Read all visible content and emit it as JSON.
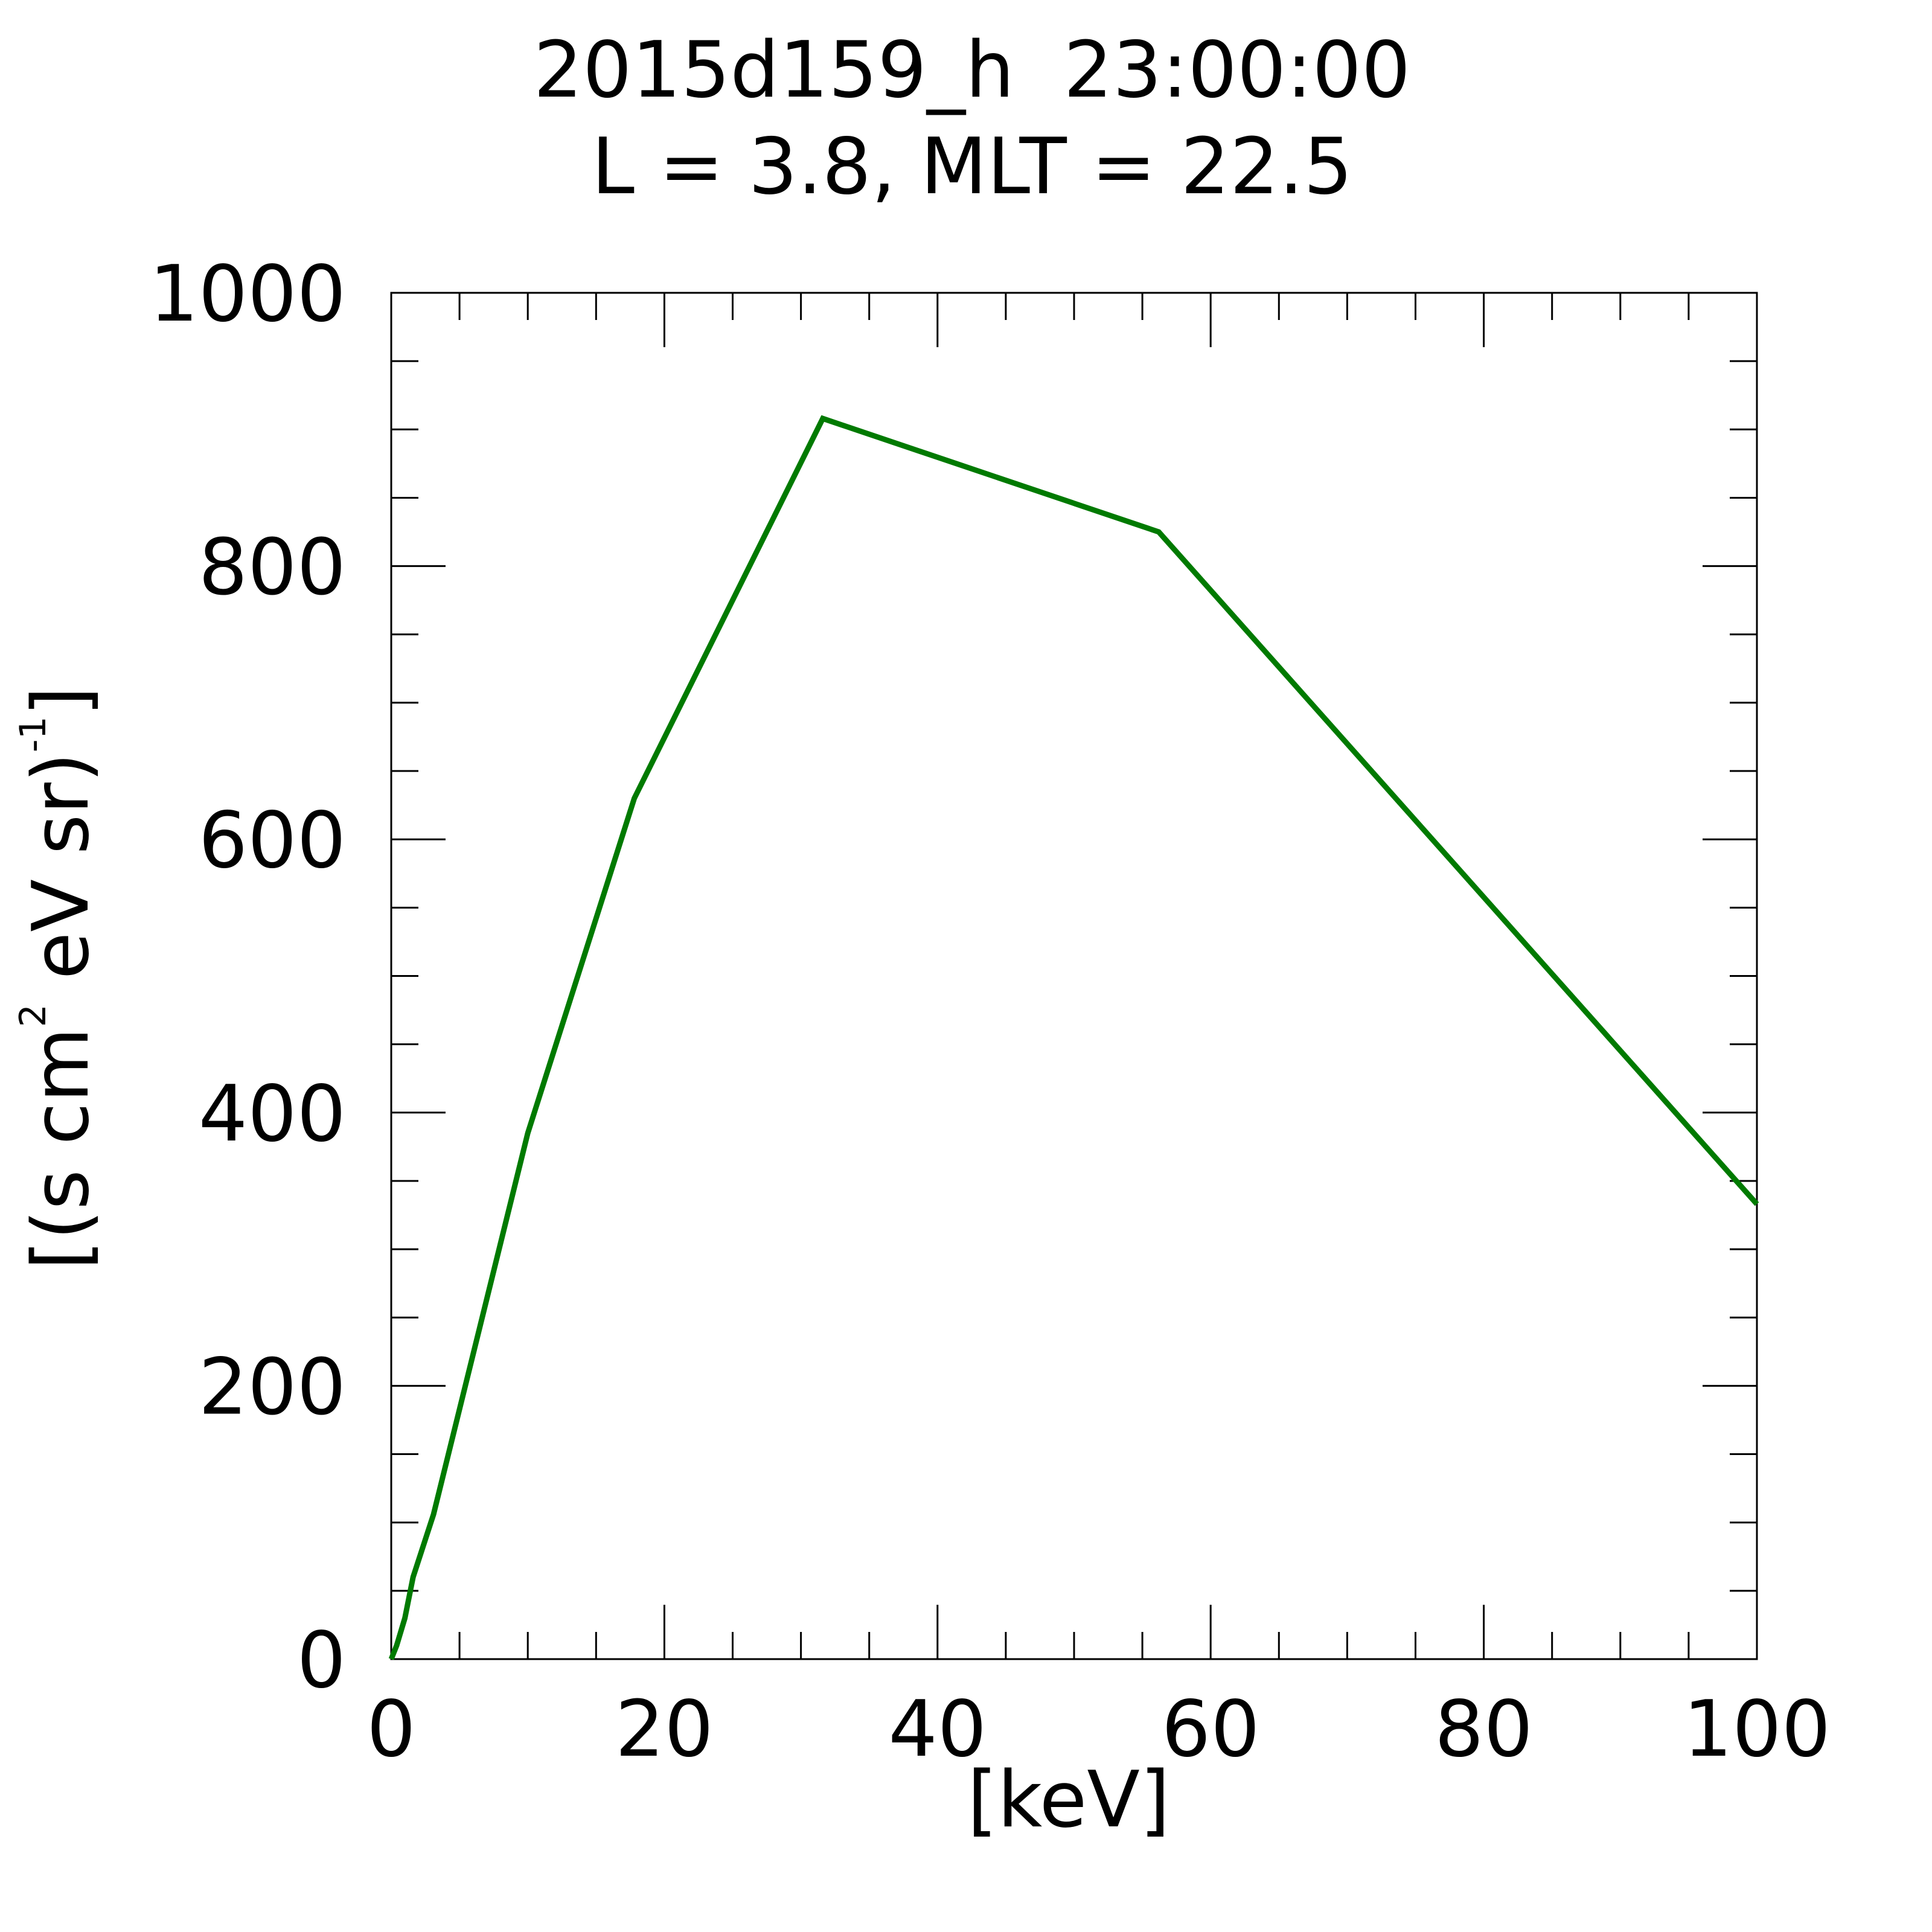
{
  "chart_data": {
    "type": "line",
    "title": "2015d159_h  23:00:00",
    "subtitle": "L = 3.8, MLT = 22.5",
    "xlabel": "[keV]",
    "ylabel": {
      "part1": "[(s cm",
      "sup1": "2",
      "part2": " eV sr)",
      "sup2": "-1",
      "part3": "]"
    },
    "xlim": [
      0,
      100
    ],
    "ylim": [
      0,
      1000
    ],
    "x_major_ticks": [
      0,
      20,
      40,
      60,
      80,
      100
    ],
    "x_tick_labels": [
      "0",
      "20",
      "40",
      "60",
      "80",
      "100"
    ],
    "x_minor_step": 5,
    "y_major_ticks": [
      0,
      200,
      400,
      600,
      800,
      1000
    ],
    "y_tick_labels": [
      "0",
      "200",
      "400",
      "600",
      "800",
      "1000"
    ],
    "y_minor_step": 50,
    "grid": false,
    "series": [
      {
        "color": "#007a00",
        "x": [
          0,
          0.4,
          1.0,
          1.6,
          3.1,
          10.0,
          17.8,
          31.6,
          56.2,
          100
        ],
        "y": [
          0,
          10,
          30,
          60,
          106,
          385,
          630,
          908,
          825,
          333
        ]
      }
    ]
  }
}
